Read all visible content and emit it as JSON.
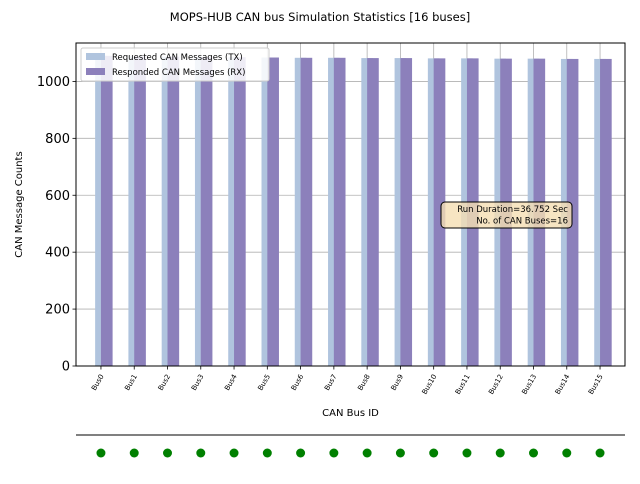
{
  "chart_data": {
    "type": "bar",
    "title": "MOPS-HUB CAN bus Simulation Statistics [16 buses]",
    "xlabel": "CAN Bus ID",
    "ylabel": "CAN Message Counts",
    "ylim": [
      0,
      1135
    ],
    "yticks": [
      0,
      200,
      400,
      600,
      800,
      1000
    ],
    "grid": true,
    "legend_position": "top-left",
    "categories": [
      "Bus0",
      "Bus1",
      "Bus2",
      "Bus3",
      "Bus4",
      "Bus5",
      "Bus6",
      "Bus7",
      "Bus8",
      "Bus9",
      "Bus10",
      "Bus11",
      "Bus12",
      "Bus13",
      "Bus14",
      "Bus15"
    ],
    "series": [
      {
        "name": "Requested CAN Messages (TX)",
        "color": "#b0c4de",
        "values": [
          1090,
          1088,
          1087,
          1086,
          1085,
          1084,
          1083,
          1083,
          1082,
          1082,
          1081,
          1081,
          1080,
          1080,
          1079,
          1079
        ]
      },
      {
        "name": "Responded CAN Messages (RX)",
        "color": "#8c80bb",
        "values": [
          1090,
          1088,
          1087,
          1086,
          1085,
          1084,
          1083,
          1083,
          1082,
          1082,
          1081,
          1081,
          1080,
          1080,
          1079,
          1079
        ]
      }
    ],
    "annotation": {
      "line1": "Run Duration=36.752 Sec",
      "line2": "No. of CAN Buses=16"
    },
    "status_row": {
      "color": "#008000",
      "values": [
        1,
        1,
        1,
        1,
        1,
        1,
        1,
        1,
        1,
        1,
        1,
        1,
        1,
        1,
        1,
        1
      ]
    }
  }
}
